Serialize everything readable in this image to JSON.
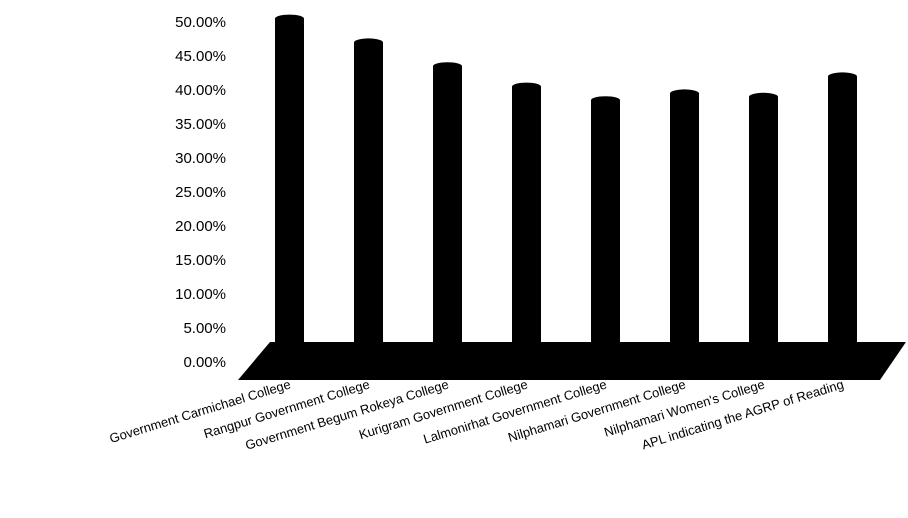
{
  "chart_data": {
    "type": "bar",
    "title": "",
    "xlabel": "",
    "ylabel": "",
    "ylim": [
      0,
      50
    ],
    "yticks": [
      "0.00%",
      "5.00%",
      "10.00%",
      "15.00%",
      "20.00%",
      "25.00%",
      "30.00%",
      "35.00%",
      "40.00%",
      "45.00%",
      "50.00%"
    ],
    "categories": [
      "Government Carmichael College",
      "Rangpur Government College",
      "Government Begum Rokeya College",
      "Kurigram Government College",
      "Lalmonirhat Government College",
      "Nilphamari Government College",
      "Nilphamari Women's College",
      "APL indicating the AGRP of Reading"
    ],
    "values": [
      50.5,
      47.0,
      43.5,
      40.5,
      38.5,
      39.5,
      39.0,
      42.0
    ],
    "unit": "%",
    "grid": false,
    "legend": "none",
    "bar_color": "#000000"
  }
}
